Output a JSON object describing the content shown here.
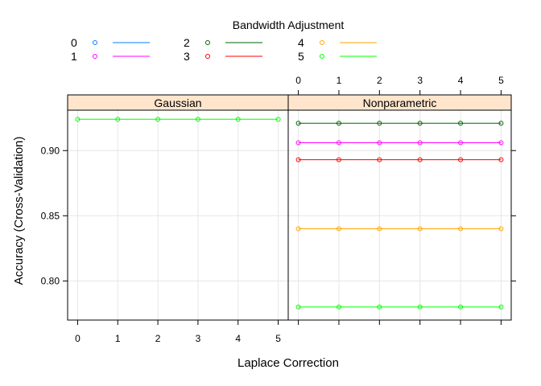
{
  "chart_data": {
    "type": "line",
    "legend": {
      "title": "Bandwidth Adjustment",
      "placement": "top",
      "entries": [
        {
          "label": "0",
          "color": "#0080ff"
        },
        {
          "label": "1",
          "color": "#ff00ff"
        },
        {
          "label": "2",
          "color": "#006400"
        },
        {
          "label": "3",
          "color": "#ff0000"
        },
        {
          "label": "4",
          "color": "#ffa500"
        },
        {
          "label": "5",
          "color": "#00ff00"
        }
      ]
    },
    "xlabel": "Laplace Correction",
    "ylabel": "Accuracy (Cross-Validation)",
    "x": [
      0,
      1,
      2,
      3,
      4,
      5
    ],
    "x_ticks": [
      "0",
      "1",
      "2",
      "3",
      "4",
      "5"
    ],
    "xlim": [
      -0.25,
      5.25
    ],
    "ylim": [
      0.77,
      0.931
    ],
    "y_ticks": [
      {
        "value": 0.8,
        "label": "0.80"
      },
      {
        "value": 0.85,
        "label": "0.85"
      },
      {
        "value": 0.9,
        "label": "0.90"
      }
    ],
    "grid": true,
    "strip_color": "#ffe5cc",
    "panels": [
      {
        "name": "Gaussian",
        "series": [
          {
            "legend_index": 5,
            "color": "#00ff00",
            "values": [
              0.924,
              0.924,
              0.924,
              0.924,
              0.924,
              0.924
            ]
          }
        ]
      },
      {
        "name": "Nonparametric",
        "series": [
          {
            "legend_index": 2,
            "color": "#006400",
            "values": [
              0.921,
              0.921,
              0.921,
              0.921,
              0.921,
              0.921
            ]
          },
          {
            "legend_index": 1,
            "color": "#ff00ff",
            "values": [
              0.906,
              0.906,
              0.906,
              0.906,
              0.906,
              0.906
            ]
          },
          {
            "legend_index": 3,
            "color": "#ff0000",
            "values": [
              0.893,
              0.893,
              0.893,
              0.893,
              0.893,
              0.893
            ]
          },
          {
            "legend_index": 4,
            "color": "#ffa500",
            "values": [
              0.84,
              0.84,
              0.84,
              0.84,
              0.84,
              0.84
            ]
          },
          {
            "legend_index": 5,
            "color": "#00ff00",
            "values": [
              0.78,
              0.78,
              0.78,
              0.78,
              0.78,
              0.78
            ]
          }
        ]
      }
    ]
  }
}
